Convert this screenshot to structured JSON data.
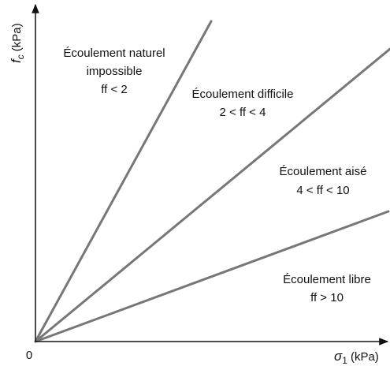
{
  "y_axis": {
    "symbol": "f",
    "subscript": "c",
    "unit": "(kPa)"
  },
  "x_axis": {
    "symbol": "σ",
    "subscript": "1",
    "unit": "(kPa)"
  },
  "origin": "0",
  "regions": [
    {
      "lines": [
        "Écoulement naturel",
        "impossible",
        "ff < 2"
      ]
    },
    {
      "lines": [
        "Écoulement difficile",
        "2 < ff < 4"
      ]
    },
    {
      "lines": [
        "Écoulement aisé",
        "4 < ff < 10"
      ]
    },
    {
      "lines": [
        "Écoulement libre",
        "ff > 10"
      ]
    }
  ]
}
